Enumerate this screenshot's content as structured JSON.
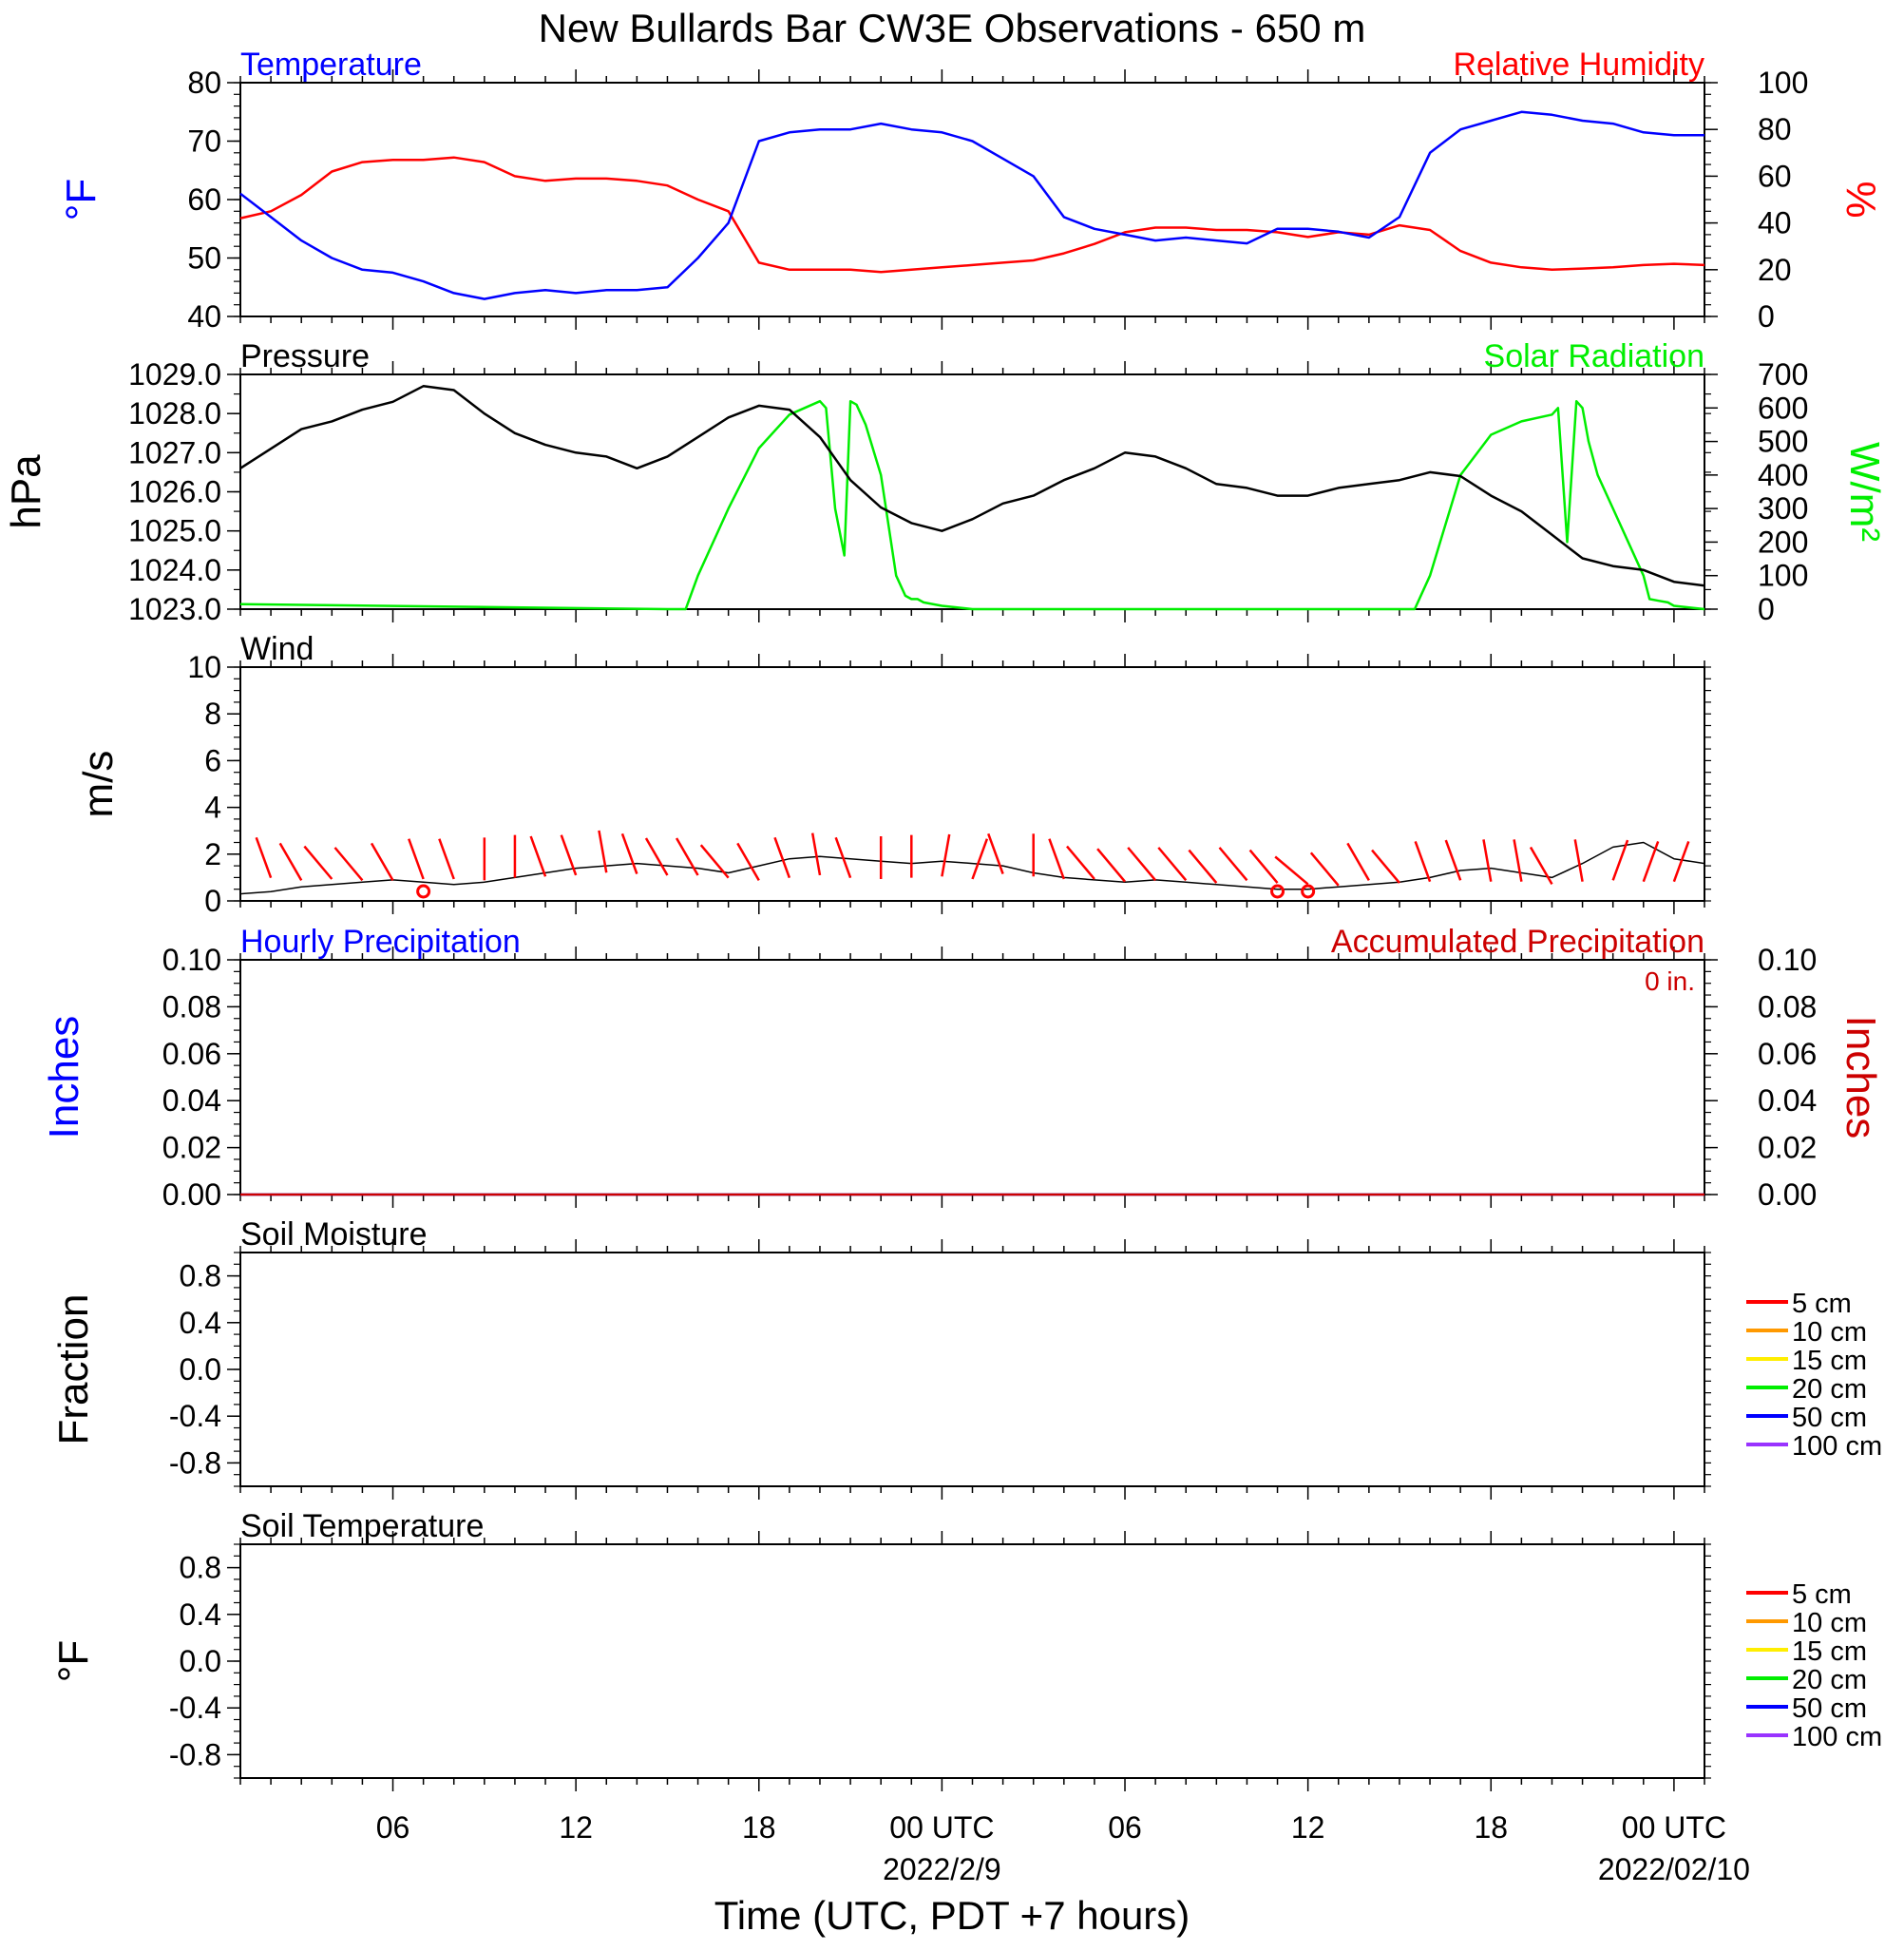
{
  "title": "New Bullards Bar CW3E Observations - 650 m",
  "xlabel": "Time (UTC, PDT +7 hours)",
  "x_ticks": [
    {
      "hour": 6,
      "label": "06",
      "date": ""
    },
    {
      "hour": 12,
      "label": "12",
      "date": ""
    },
    {
      "hour": 18,
      "label": "18",
      "date": ""
    },
    {
      "hour": 24,
      "label": "00 UTC",
      "date": "2022/2/9"
    },
    {
      "hour": 30,
      "label": "06",
      "date": ""
    },
    {
      "hour": 36,
      "label": "12",
      "date": ""
    },
    {
      "hour": 42,
      "label": "18",
      "date": ""
    },
    {
      "hour": 48,
      "label": "00 UTC",
      "date": "2022/02/10"
    }
  ],
  "x_range_hours": [
    1,
    49
  ],
  "colors": {
    "temperature": "#0000ff",
    "humidity": "#ff0000",
    "pressure": "#000000",
    "solar": "#00ee00",
    "wind": "#000000",
    "barb": "#ff0000",
    "precip_hourly": "#0000ff",
    "precip_accum": "#cc0000"
  },
  "panels": {
    "temp_rh": {
      "left_title": "Temperature",
      "right_title": "Relative Humidity",
      "left_unit": "°F",
      "right_unit": "%",
      "left_ticks": [
        "40",
        "50",
        "60",
        "70",
        "80"
      ],
      "right_ticks": [
        "0",
        "20",
        "40",
        "60",
        "80",
        "100"
      ]
    },
    "pressure_solar": {
      "left_title": "Pressure",
      "right_title": "Solar Radiation",
      "left_unit": "hPa",
      "right_unit": "W/m²",
      "left_ticks": [
        "1023.0",
        "1024.0",
        "1025.0",
        "1026.0",
        "1027.0",
        "1028.0",
        "1029.0"
      ],
      "right_ticks": [
        "0",
        "100",
        "200",
        "300",
        "400",
        "500",
        "600",
        "700"
      ]
    },
    "wind": {
      "left_title": "Wind",
      "left_unit": "m/s",
      "left_ticks": [
        "0",
        "2",
        "4",
        "6",
        "8",
        "10"
      ]
    },
    "precip": {
      "left_title": "Hourly Precipitation",
      "right_title": "Accumulated Precipitation",
      "total_label": "0 in.",
      "left_unit": "Inches",
      "right_unit": "Inches",
      "left_ticks": [
        "0.00",
        "0.02",
        "0.04",
        "0.06",
        "0.08",
        "0.10"
      ],
      "right_ticks": [
        "0.00",
        "0.02",
        "0.04",
        "0.06",
        "0.08",
        "0.10"
      ]
    },
    "soil_moisture": {
      "left_title": "Soil Moisture",
      "left_unit": "Fraction",
      "left_ticks": [
        "-0.8",
        "-0.4",
        "0.0",
        "0.4",
        "0.8"
      ]
    },
    "soil_temp": {
      "left_title": "Soil Temperature",
      "left_unit": "°F",
      "left_ticks": [
        "-0.8",
        "-0.4",
        "0.0",
        "0.4",
        "0.8"
      ]
    }
  },
  "soil_legend": [
    {
      "label": "5 cm",
      "color": "#ff0000"
    },
    {
      "label": "10 cm",
      "color": "#ff9900"
    },
    {
      "label": "15 cm",
      "color": "#ffee00"
    },
    {
      "label": "20 cm",
      "color": "#00ee00"
    },
    {
      "label": "50 cm",
      "color": "#0000ff"
    },
    {
      "label": "100 cm",
      "color": "#9933ff"
    }
  ],
  "chart_data": [
    {
      "type": "line",
      "title": "Temperature",
      "ylabel": "°F",
      "ylim": [
        40,
        80
      ],
      "series": [
        {
          "name": "Temperature",
          "x_hours": [
            1,
            2,
            3,
            4,
            5,
            6,
            7,
            8,
            9,
            10,
            11,
            12,
            13,
            14,
            15,
            16,
            17,
            18,
            19,
            20,
            21,
            22,
            23,
            24,
            25,
            26,
            27,
            28,
            29,
            30,
            31,
            32,
            33,
            34,
            35,
            36,
            37,
            38,
            39,
            40,
            41,
            42,
            43,
            44,
            45,
            46,
            47,
            48,
            49
          ],
          "y": [
            61,
            57,
            53,
            50,
            48,
            47.5,
            46,
            44,
            43,
            44,
            44.5,
            44,
            44.5,
            44.5,
            45,
            50,
            56,
            70,
            71.5,
            72,
            72,
            73,
            72,
            71.5,
            70,
            67,
            64,
            57,
            55,
            54,
            53,
            53.5,
            53,
            52.5,
            55,
            55,
            54.5,
            53.5,
            57,
            68,
            72,
            73.5,
            75,
            74.5,
            73.5,
            73,
            71.5,
            71,
            71
          ]
        }
      ]
    },
    {
      "type": "line",
      "title": "Relative Humidity",
      "ylabel": "%",
      "ylim": [
        0,
        100
      ],
      "series": [
        {
          "name": "Relative Humidity",
          "x_hours": [
            1,
            2,
            3,
            4,
            5,
            6,
            7,
            8,
            9,
            10,
            11,
            12,
            13,
            14,
            15,
            16,
            17,
            18,
            19,
            20,
            21,
            22,
            23,
            24,
            25,
            26,
            27,
            28,
            29,
            30,
            31,
            32,
            33,
            34,
            35,
            36,
            37,
            38,
            39,
            40,
            41,
            42,
            43,
            44,
            45,
            46,
            47,
            48,
            49
          ],
          "y": [
            42,
            45,
            52,
            62,
            66,
            67,
            67,
            68,
            66,
            60,
            58,
            59,
            59,
            58,
            56,
            50,
            45,
            23,
            20,
            20,
            20,
            19,
            20,
            21,
            22,
            23,
            24,
            27,
            31,
            36,
            38,
            38,
            37,
            37,
            36,
            34,
            36,
            35,
            39,
            37,
            28,
            23,
            21,
            20,
            20.5,
            21,
            22,
            22.5,
            22
          ]
        }
      ]
    },
    {
      "type": "line",
      "title": "Pressure",
      "ylabel": "hPa",
      "ylim": [
        1023,
        1029
      ],
      "series": [
        {
          "name": "Pressure",
          "x_hours": [
            1,
            2,
            3,
            4,
            5,
            6,
            7,
            8,
            9,
            10,
            11,
            12,
            13,
            14,
            15,
            16,
            17,
            18,
            19,
            20,
            21,
            22,
            23,
            24,
            25,
            26,
            27,
            28,
            29,
            30,
            31,
            32,
            33,
            34,
            35,
            36,
            37,
            38,
            39,
            40,
            41,
            42,
            43,
            44,
            45,
            46,
            47,
            48,
            49
          ],
          "y": [
            1026.6,
            1027.1,
            1027.6,
            1027.8,
            1028.1,
            1028.3,
            1028.7,
            1028.6,
            1028.0,
            1027.5,
            1027.2,
            1027.0,
            1026.9,
            1026.6,
            1026.9,
            1027.4,
            1027.9,
            1028.2,
            1028.1,
            1027.4,
            1026.3,
            1025.6,
            1025.2,
            1025.0,
            1025.3,
            1025.7,
            1025.9,
            1026.3,
            1026.6,
            1027.0,
            1026.9,
            1026.6,
            1026.2,
            1026.1,
            1025.9,
            1025.9,
            1026.1,
            1026.2,
            1026.3,
            1026.5,
            1026.4,
            1025.9,
            1025.5,
            1024.9,
            1024.3,
            1024.1,
            1024.0,
            1023.7,
            1023.6
          ]
        }
      ]
    },
    {
      "type": "line",
      "title": "Solar Radiation",
      "ylabel": "W/m²",
      "ylim": [
        0,
        700
      ],
      "series": [
        {
          "name": "Solar Radiation",
          "x_hours": [
            1,
            15,
            15.6,
            16,
            17,
            18,
            19,
            20,
            20.2,
            20.5,
            20.8,
            21,
            21.2,
            21.5,
            22,
            22.5,
            22.8,
            23,
            23.2,
            23.4,
            24,
            25,
            26,
            39,
            39.5,
            40,
            41,
            42,
            43,
            44,
            44.2,
            44.5,
            44.8,
            45,
            45.2,
            45.5,
            46,
            47,
            47.2,
            47.5,
            47.8,
            48,
            49
          ],
          "y": [
            15,
            0,
            0,
            100,
            300,
            480,
            580,
            620,
            600,
            300,
            160,
            620,
            610,
            550,
            400,
            100,
            40,
            30,
            30,
            20,
            10,
            0,
            0,
            0,
            0,
            100,
            400,
            520,
            560,
            580,
            600,
            200,
            620,
            600,
            500,
            400,
            300,
            100,
            30,
            25,
            20,
            10,
            0
          ]
        }
      ]
    },
    {
      "type": "line",
      "title": "Wind",
      "ylabel": "m/s",
      "ylim": [
        0,
        10
      ],
      "series": [
        {
          "name": "Wind",
          "x_hours": [
            1,
            2,
            3,
            4,
            5,
            6,
            7,
            8,
            9,
            10,
            11,
            12,
            13,
            14,
            15,
            16,
            17,
            18,
            19,
            20,
            21,
            22,
            23,
            24,
            25,
            26,
            27,
            28,
            29,
            30,
            31,
            32,
            33,
            34,
            35,
            36,
            37,
            38,
            39,
            40,
            41,
            42,
            43,
            44,
            45,
            46,
            47,
            48,
            49
          ],
          "y": [
            0.3,
            0.4,
            0.6,
            0.7,
            0.8,
            0.9,
            0.8,
            0.7,
            0.8,
            1.0,
            1.2,
            1.4,
            1.5,
            1.6,
            1.5,
            1.4,
            1.2,
            1.5,
            1.8,
            1.9,
            1.8,
            1.7,
            1.6,
            1.7,
            1.6,
            1.5,
            1.2,
            1.0,
            0.9,
            0.8,
            0.9,
            0.8,
            0.7,
            0.6,
            0.5,
            0.5,
            0.6,
            0.7,
            0.8,
            1.0,
            1.3,
            1.4,
            1.2,
            1.0,
            1.6,
            2.3,
            2.5,
            1.8,
            1.6
          ]
        }
      ]
    },
    {
      "type": "line",
      "title": "Hourly Precipitation / Accumulated Precipitation",
      "ylabel": "Inches",
      "ylim": [
        0,
        0.1
      ],
      "series": [
        {
          "name": "Hourly Precipitation",
          "x_hours": [
            1,
            49
          ],
          "y": [
            0,
            0
          ]
        },
        {
          "name": "Accumulated Precipitation",
          "x_hours": [
            1,
            49
          ],
          "y": [
            0,
            0
          ]
        }
      ]
    },
    {
      "type": "line",
      "title": "Soil Moisture",
      "ylabel": "Fraction",
      "ylim": [
        -1,
        1
      ],
      "series": []
    },
    {
      "type": "line",
      "title": "Soil Temperature",
      "ylabel": "°F",
      "ylim": [
        -1,
        1
      ],
      "series": []
    }
  ],
  "wind_barbs": {
    "hours": [
      2,
      3,
      4,
      5,
      6,
      7,
      8,
      9,
      10,
      11,
      12,
      13,
      14,
      15,
      16,
      17,
      18,
      19,
      20,
      21,
      22,
      23,
      24,
      25,
      26,
      27,
      28,
      29,
      30,
      31,
      32,
      33,
      34,
      35,
      36,
      37,
      38,
      39,
      40,
      41,
      42,
      43,
      44,
      45,
      46,
      47,
      48
    ],
    "direction_deg": [
      340,
      330,
      320,
      320,
      330,
      340,
      340,
      0,
      0,
      340,
      340,
      350,
      340,
      330,
      330,
      320,
      330,
      340,
      350,
      340,
      0,
      0,
      10,
      20,
      340,
      0,
      340,
      320,
      320,
      320,
      320,
      320,
      320,
      320,
      310,
      320,
      330,
      320,
      340,
      340,
      350,
      350,
      330,
      350,
      20,
      20,
      20
    ],
    "speed_ms": [
      1.8,
      1.6,
      1.7,
      1.6,
      1.6,
      1.7,
      1.7,
      1.6,
      1.8,
      1.9,
      2.0,
      2.2,
      2.1,
      2.0,
      2.0,
      1.8,
      1.6,
      1.8,
      2.0,
      1.8,
      1.7,
      1.8,
      1.9,
      1.7,
      2.1,
      1.9,
      1.7,
      1.7,
      1.5,
      1.6,
      1.6,
      1.4,
      1.6,
      1.4,
      1.3,
      1.2,
      1.6,
      1.4,
      1.5,
      1.6,
      1.5,
      1.5,
      1.3,
      1.5,
      1.6,
      1.5,
      1.5
    ],
    "calm_hours": [
      7,
      35,
      36
    ]
  }
}
